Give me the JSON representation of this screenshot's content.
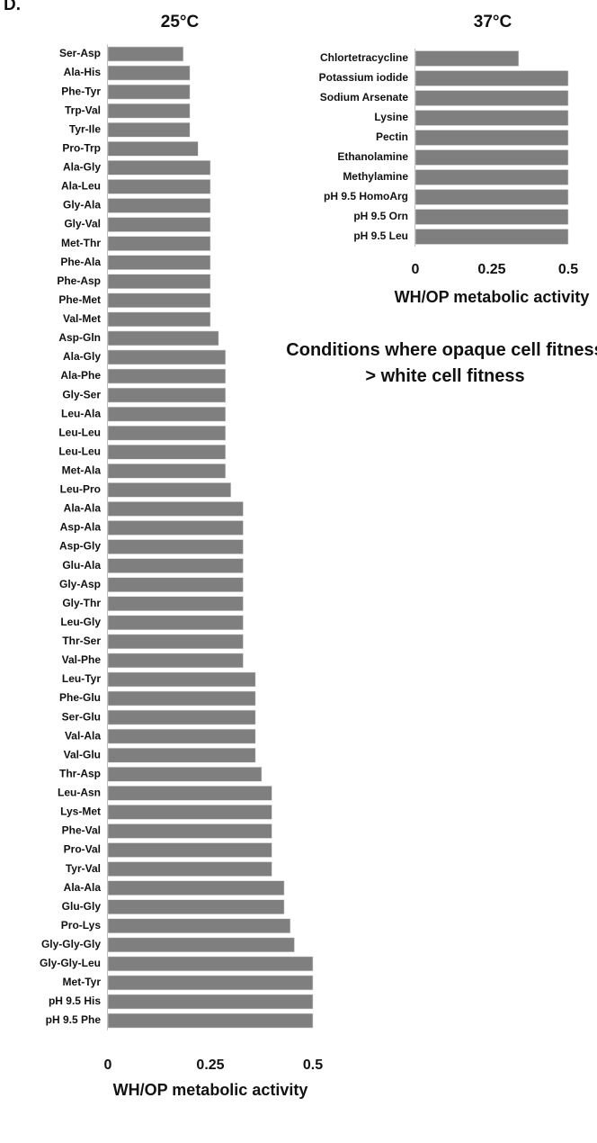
{
  "panel_label": "D.",
  "annotation": "Conditions where opaque cell fitness > white cell fitness",
  "chart_data": [
    {
      "type": "bar",
      "orientation": "horizontal",
      "title": "25°C",
      "x_label": "WH/OP metabolic activity",
      "categories": [
        "Ser-Asp",
        "Ala-His",
        "Phe-Tyr",
        "Trp-Val",
        "Tyr-Ile",
        "Pro-Trp",
        "Ala-Gly",
        "Ala-Leu",
        "Gly-Ala",
        "Gly-Val",
        "Met-Thr",
        "Phe-Ala",
        "Phe-Asp",
        "Phe-Met",
        "Val-Met",
        "Asp-Gln",
        "Ala-Gly",
        "Ala-Phe",
        "Gly-Ser",
        "Leu-Ala",
        "Leu-Leu",
        "Leu-Leu",
        "Met-Ala",
        "Leu-Pro",
        "Ala-Ala",
        "Asp-Ala",
        "Asp-Gly",
        "Glu-Ala",
        "Gly-Asp",
        "Gly-Thr",
        "Leu-Gly",
        "Thr-Ser",
        "Val-Phe",
        "Leu-Tyr",
        "Phe-Glu",
        "Ser-Glu",
        "Val-Ala",
        "Val-Glu",
        "Thr-Asp",
        "Leu-Asn",
        "Lys-Met",
        "Phe-Val",
        "Pro-Val",
        "Tyr-Val",
        "Ala-Ala",
        "Glu-Gly",
        "Pro-Lys",
        "Gly-Gly-Gly",
        "Gly-Gly-Leu",
        "Met-Tyr",
        "pH 9.5 His",
        "pH 9.5 Phe"
      ],
      "values": [
        0.184,
        0.2,
        0.2,
        0.2,
        0.2,
        0.22,
        0.25,
        0.25,
        0.25,
        0.25,
        0.25,
        0.25,
        0.25,
        0.25,
        0.25,
        0.27,
        0.287,
        0.287,
        0.287,
        0.287,
        0.287,
        0.287,
        0.287,
        0.3,
        0.33,
        0.33,
        0.33,
        0.33,
        0.33,
        0.33,
        0.33,
        0.33,
        0.33,
        0.36,
        0.36,
        0.36,
        0.36,
        0.36,
        0.375,
        0.4,
        0.4,
        0.4,
        0.4,
        0.4,
        0.43,
        0.43,
        0.445,
        0.455,
        0.5,
        0.5,
        0.5,
        0.5
      ],
      "color": "#7f7f7f",
      "xlim": [
        0,
        0.5
      ],
      "xticks": [
        0,
        0.25,
        0.5
      ]
    },
    {
      "type": "bar",
      "orientation": "horizontal",
      "title": "37°C",
      "x_label": "WH/OP metabolic activity",
      "categories": [
        "Chlortetracycline",
        "Potassium iodide",
        "Sodium Arsenate",
        "Lysine",
        "Pectin",
        "Ethanolamine",
        "Methylamine",
        "pH 9.5 HomoArg",
        "pH 9.5 Orn",
        "pH 9.5 Leu"
      ],
      "values": [
        0.338,
        0.5,
        0.5,
        0.5,
        0.5,
        0.5,
        0.5,
        0.5,
        0.5,
        0.5
      ],
      "color": "#7f7f7f",
      "xlim": [
        0,
        0.5
      ],
      "xticks": [
        0,
        0.25,
        0.5
      ]
    }
  ]
}
